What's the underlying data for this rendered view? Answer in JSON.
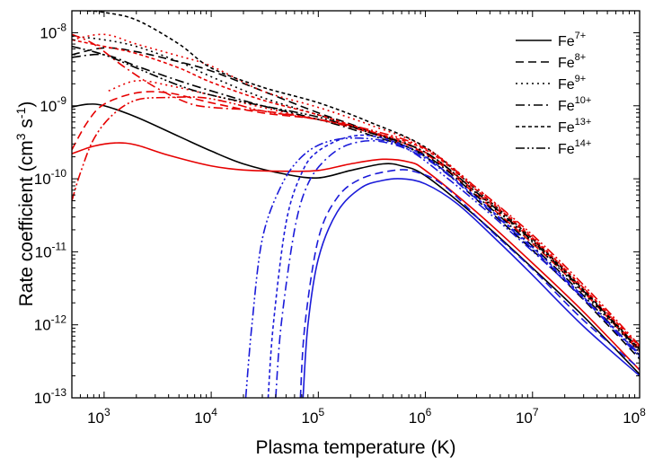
{
  "chart_data": {
    "type": "line",
    "title": "",
    "xlabel": "Plasma temperature (K)",
    "ylabel": "Rate coefficient (cm3 s-1)",
    "ylabel_parts": {
      "prefix": "Rate coefficient (cm",
      "unit1_exp": "3",
      "mid": " s",
      "unit2_exp": "-1",
      "suffix": ")"
    },
    "x_scale": "log",
    "y_scale": "log",
    "xlim": [
      500,
      100000000
    ],
    "ylim": [
      1e-13,
      2e-08
    ],
    "x_ticks": [
      {
        "value": 1000,
        "base": "10",
        "exp": "3"
      },
      {
        "value": 10000,
        "base": "10",
        "exp": "4"
      },
      {
        "value": 100000,
        "base": "10",
        "exp": "5"
      },
      {
        "value": 1000000,
        "base": "10",
        "exp": "6"
      },
      {
        "value": 10000000,
        "base": "10",
        "exp": "7"
      },
      {
        "value": 100000000,
        "base": "10",
        "exp": "8"
      }
    ],
    "y_ticks": [
      {
        "value": 1e-13,
        "base": "10",
        "exp": "-13"
      },
      {
        "value": 1e-12,
        "base": "10",
        "exp": "-12"
      },
      {
        "value": 1e-11,
        "base": "10",
        "exp": "-11"
      },
      {
        "value": 1e-10,
        "base": "10",
        "exp": "-10"
      },
      {
        "value": 1e-09,
        "base": "10",
        "exp": "-9"
      },
      {
        "value": 1e-08,
        "base": "10",
        "exp": "-8"
      }
    ],
    "grid": false,
    "legend_position": "top-right",
    "colors": {
      "black": "#000000",
      "red": "#e60000",
      "blue": "#1a1ad9"
    },
    "legend": [
      {
        "ion": "Fe",
        "charge": "7+",
        "dash": "solid"
      },
      {
        "ion": "Fe",
        "charge": "8+",
        "dash": "dash"
      },
      {
        "ion": "Fe",
        "charge": "9+",
        "dash": "dot"
      },
      {
        "ion": "Fe",
        "charge": "10+",
        "dash": "dashdot"
      },
      {
        "ion": "Fe",
        "charge": "13+",
        "dash": "shortdash"
      },
      {
        "ion": "Fe",
        "charge": "14+",
        "dash": "dashdotdot"
      }
    ],
    "series": [
      {
        "ion": "Fe7+",
        "color": "black",
        "dash": "solid",
        "points": [
          [
            500,
            9.6e-10
          ],
          [
            700,
            1.05e-09
          ],
          [
            1000,
            1e-09
          ],
          [
            2000,
            7e-10
          ],
          [
            5000,
            3.8e-10
          ],
          [
            10000,
            2.4e-10
          ],
          [
            20000,
            1.6e-10
          ],
          [
            50000,
            1.15e-10
          ],
          [
            100000,
            1.03e-10
          ],
          [
            200000,
            1.3e-10
          ],
          [
            400000,
            1.6e-10
          ],
          [
            600000,
            1.5e-10
          ],
          [
            1000000,
            1.1e-10
          ],
          [
            3000000,
            3e-11
          ],
          [
            10000000,
            6e-12
          ],
          [
            30000000,
            1.3e-12
          ],
          [
            100000000,
            2.1e-13
          ]
        ]
      },
      {
        "ion": "Fe7+",
        "color": "red",
        "dash": "solid",
        "points": [
          [
            500,
            2.2e-10
          ],
          [
            800,
            2.8e-10
          ],
          [
            1300,
            3.1e-10
          ],
          [
            2000,
            2.9e-10
          ],
          [
            4000,
            2.1e-10
          ],
          [
            10000,
            1.5e-10
          ],
          [
            20000,
            1.32e-10
          ],
          [
            50000,
            1.27e-10
          ],
          [
            100000,
            1.3e-10
          ],
          [
            200000,
            1.6e-10
          ],
          [
            400000,
            1.85e-10
          ],
          [
            700000,
            1.7e-10
          ],
          [
            1000000,
            1.3e-10
          ],
          [
            3000000,
            3.5e-11
          ],
          [
            10000000,
            7e-12
          ],
          [
            30000000,
            1.5e-12
          ],
          [
            100000000,
            2.4e-13
          ]
        ]
      },
      {
        "ion": "Fe7+",
        "color": "blue",
        "dash": "solid",
        "points": [
          [
            72000,
            1e-13
          ],
          [
            80000,
            1e-12
          ],
          [
            100000,
            8e-12
          ],
          [
            150000,
            3.5e-11
          ],
          [
            250000,
            7.5e-11
          ],
          [
            400000,
            9.5e-11
          ],
          [
            600000,
            1e-10
          ],
          [
            1000000,
            8.5e-11
          ],
          [
            2000000,
            4.5e-11
          ],
          [
            5000000,
            1.3e-11
          ],
          [
            10000000,
            4.8e-12
          ],
          [
            30000000,
            9.5e-13
          ],
          [
            100000000,
            2e-13
          ]
        ]
      },
      {
        "ion": "Fe8+",
        "color": "black",
        "dash": "dash",
        "points": [
          [
            500,
            5e-09
          ],
          [
            1000,
            6.2e-09
          ],
          [
            2000,
            5.5e-09
          ],
          [
            5000,
            4e-09
          ],
          [
            10000,
            3e-09
          ],
          [
            30000,
            1.6e-09
          ],
          [
            100000,
            8e-10
          ],
          [
            300000,
            4.5e-10
          ],
          [
            1000000,
            2e-10
          ],
          [
            3000000,
            5.2e-11
          ],
          [
            10000000,
            1.05e-11
          ],
          [
            30000000,
            2.2e-12
          ],
          [
            100000000,
            3.4e-13
          ]
        ]
      },
      {
        "ion": "Fe8+",
        "color": "red",
        "dash": "dash",
        "points": [
          [
            500,
            2.5e-10
          ],
          [
            700,
            6e-10
          ],
          [
            1000,
            1.05e-09
          ],
          [
            2000,
            1.5e-09
          ],
          [
            4000,
            1.5e-09
          ],
          [
            10000,
            1.1e-09
          ],
          [
            30000,
            8e-10
          ],
          [
            100000,
            6.5e-10
          ],
          [
            300000,
            4.5e-10
          ],
          [
            1000000,
            2.2e-10
          ],
          [
            3000000,
            6e-11
          ],
          [
            10000000,
            1.3e-11
          ],
          [
            30000000,
            2.8e-12
          ],
          [
            100000000,
            4.3e-13
          ]
        ]
      },
      {
        "ion": "Fe8+",
        "color": "blue",
        "dash": "dash",
        "points": [
          [
            68000,
            1e-13
          ],
          [
            75000,
            1e-12
          ],
          [
            100000,
            1.5e-11
          ],
          [
            150000,
            5.5e-11
          ],
          [
            250000,
            1e-10
          ],
          [
            500000,
            1.3e-10
          ],
          [
            800000,
            1.25e-10
          ],
          [
            1500000,
            8e-11
          ],
          [
            4000000,
            2e-11
          ],
          [
            10000000,
            5.8e-12
          ],
          [
            30000000,
            1.15e-12
          ],
          [
            100000000,
            2.5e-13
          ]
        ]
      },
      {
        "ion": "Fe9+",
        "color": "black",
        "dash": "dot",
        "points": [
          [
            500,
            9e-09
          ],
          [
            1000,
            8e-09
          ],
          [
            2000,
            6.5e-09
          ],
          [
            5000,
            4e-09
          ],
          [
            10000,
            2.5e-09
          ],
          [
            30000,
            1.3e-09
          ],
          [
            100000,
            7.5e-10
          ],
          [
            300000,
            4.5e-10
          ],
          [
            1000000,
            2.3e-10
          ],
          [
            3000000,
            6.3e-11
          ],
          [
            10000000,
            1.35e-11
          ],
          [
            30000000,
            2.7e-12
          ],
          [
            100000000,
            4.2e-13
          ]
        ]
      },
      {
        "ion": "Fe9+",
        "color": "red",
        "dash": "dot",
        "points": [
          [
            500,
            8e-09
          ],
          [
            1000,
            9.5e-09
          ],
          [
            2000,
            7e-09
          ],
          [
            5000,
            4.8e-09
          ],
          [
            10000,
            3.5e-09
          ],
          [
            30000,
            1.6e-09
          ],
          [
            100000,
            9.5e-10
          ],
          [
            300000,
            5.5e-10
          ],
          [
            1000000,
            2.7e-10
          ],
          [
            3000000,
            7.5e-11
          ],
          [
            10000000,
            1.6e-11
          ],
          [
            30000000,
            3.2e-12
          ],
          [
            100000000,
            4.8e-13
          ]
        ]
      },
      {
        "ion": "Fe9+",
        "color": "red",
        "dash": "dot",
        "points": [
          [
            1100,
            1.6e-09
          ],
          [
            2000,
            2.2e-09
          ],
          [
            4000,
            1.9e-09
          ],
          [
            10000,
            1.4e-09
          ],
          [
            30000,
            9.5e-10
          ],
          [
            100000,
            6.5e-10
          ],
          [
            300000,
            4.3e-10
          ],
          [
            1000000,
            2.2e-10
          ]
        ]
      },
      {
        "ion": "Fe10+",
        "color": "black",
        "dash": "dashdot",
        "points": [
          [
            500,
            4.6e-09
          ],
          [
            1000,
            5e-09
          ],
          [
            2000,
            3.5e-09
          ],
          [
            5000,
            2.2e-09
          ],
          [
            10000,
            1.6e-09
          ],
          [
            30000,
            1e-09
          ],
          [
            100000,
            6.5e-10
          ],
          [
            300000,
            4e-10
          ],
          [
            1000000,
            2.1e-10
          ],
          [
            3000000,
            5.8e-11
          ],
          [
            10000000,
            1.2e-11
          ],
          [
            30000000,
            2.5e-12
          ],
          [
            100000000,
            3.8e-13
          ]
        ]
      },
      {
        "ion": "Fe10+",
        "color": "red",
        "dash": "dashdot",
        "points": [
          [
            500,
            9.5e-09
          ],
          [
            800,
            7e-09
          ],
          [
            1500,
            3.5e-09
          ],
          [
            3000,
            1.8e-09
          ],
          [
            6000,
            1.1e-09
          ],
          [
            10000,
            9.5e-10
          ],
          [
            30000,
            8.5e-10
          ],
          [
            100000,
            6.5e-10
          ],
          [
            300000,
            4.3e-10
          ],
          [
            1000000,
            2.3e-10
          ],
          [
            3000000,
            6.5e-11
          ],
          [
            10000000,
            1.45e-11
          ],
          [
            30000000,
            3e-12
          ],
          [
            100000000,
            4.6e-13
          ]
        ]
      },
      {
        "ion": "Fe10+",
        "color": "blue",
        "dash": "dashdot",
        "points": [
          [
            40000,
            1e-13
          ],
          [
            45000,
            1e-12
          ],
          [
            60000,
            2e-11
          ],
          [
            80000,
            8.5e-11
          ],
          [
            120000,
            1.9e-10
          ],
          [
            200000,
            3e-10
          ],
          [
            400000,
            3.2e-10
          ],
          [
            1000000,
            1.9e-10
          ],
          [
            3000000,
            5.3e-11
          ],
          [
            10000000,
            1.1e-11
          ],
          [
            30000000,
            2.3e-12
          ],
          [
            100000000,
            3.6e-13
          ]
        ]
      },
      {
        "ion": "Fe13+",
        "color": "black",
        "dash": "shortdash",
        "points": [
          [
            700,
            2e-08
          ],
          [
            1000,
            1.9e-08
          ],
          [
            2000,
            1.5e-08
          ],
          [
            5000,
            7e-09
          ],
          [
            10000,
            3.3e-09
          ],
          [
            30000,
            1.8e-09
          ],
          [
            100000,
            1.1e-09
          ],
          [
            300000,
            6e-10
          ],
          [
            1000000,
            2.7e-10
          ],
          [
            3000000,
            7e-11
          ],
          [
            10000000,
            1.5e-11
          ],
          [
            30000000,
            3e-12
          ],
          [
            100000000,
            4.6e-13
          ]
        ]
      },
      {
        "ion": "Fe13+",
        "color": "red",
        "dash": "shortdash",
        "points": [
          [
            500,
            8e-09
          ],
          [
            1000,
            6.5e-09
          ],
          [
            2000,
            5.2e-09
          ],
          [
            5000,
            3.3e-09
          ],
          [
            10000,
            2.1e-09
          ],
          [
            30000,
            1.2e-09
          ],
          [
            100000,
            7.5e-10
          ],
          [
            300000,
            4.5e-10
          ],
          [
            1000000,
            2.5e-10
          ],
          [
            3000000,
            7e-11
          ],
          [
            10000000,
            1.55e-11
          ],
          [
            30000000,
            3.2e-12
          ],
          [
            100000000,
            5e-13
          ]
        ]
      },
      {
        "ion": "Fe13+",
        "color": "blue",
        "dash": "shortdash",
        "points": [
          [
            34000,
            1e-13
          ],
          [
            38000,
            1e-12
          ],
          [
            50000,
            2.5e-11
          ],
          [
            70000,
            1.2e-10
          ],
          [
            100000,
            2.4e-10
          ],
          [
            200000,
            3.8e-10
          ],
          [
            400000,
            3.6e-10
          ],
          [
            1000000,
            2e-10
          ],
          [
            3000000,
            5.5e-11
          ],
          [
            10000000,
            1.15e-11
          ],
          [
            30000000,
            2.4e-12
          ],
          [
            100000000,
            3.8e-13
          ]
        ]
      },
      {
        "ion": "Fe14+",
        "color": "black",
        "dash": "dashdotdot",
        "points": [
          [
            500,
            6.5e-09
          ],
          [
            1000,
            5e-09
          ],
          [
            2000,
            3.3e-09
          ],
          [
            5000,
            1.9e-09
          ],
          [
            10000,
            1.4e-09
          ],
          [
            30000,
            1e-09
          ],
          [
            100000,
            7e-10
          ],
          [
            300000,
            4.3e-10
          ],
          [
            1000000,
            2.3e-10
          ],
          [
            3000000,
            6.5e-11
          ],
          [
            10000000,
            1.4e-11
          ],
          [
            30000000,
            2.9e-12
          ],
          [
            100000000,
            4.4e-13
          ]
        ]
      },
      {
        "ion": "Fe14+",
        "color": "red",
        "dash": "dashdotdot",
        "points": [
          [
            500,
            5e-11
          ],
          [
            600,
            1.2e-10
          ],
          [
            800,
            3.5e-10
          ],
          [
            1200,
            7.5e-10
          ],
          [
            2000,
            1.2e-09
          ],
          [
            4000,
            1.3e-09
          ],
          [
            8000,
            1.3e-09
          ],
          [
            15000,
            1.1e-09
          ],
          [
            30000,
            8.5e-10
          ],
          [
            100000,
            6.5e-10
          ],
          [
            300000,
            4.7e-10
          ],
          [
            1000000,
            2.6e-10
          ],
          [
            3000000,
            7.5e-11
          ],
          [
            10000000,
            1.7e-11
          ],
          [
            30000000,
            3.5e-12
          ],
          [
            100000000,
            5.2e-13
          ]
        ]
      },
      {
        "ion": "Fe14+",
        "color": "blue",
        "dash": "dashdotdot",
        "points": [
          [
            21000,
            1e-13
          ],
          [
            24000,
            1e-12
          ],
          [
            30000,
            1.5e-11
          ],
          [
            45000,
            8e-11
          ],
          [
            70000,
            2e-10
          ],
          [
            120000,
            3.2e-10
          ],
          [
            250000,
            3.6e-10
          ],
          [
            600000,
            2.8e-10
          ],
          [
            1500000,
            1.1e-10
          ],
          [
            5000000,
            2.5e-11
          ],
          [
            20000000,
            4e-12
          ],
          [
            100000000,
            4e-13
          ]
        ]
      }
    ]
  }
}
